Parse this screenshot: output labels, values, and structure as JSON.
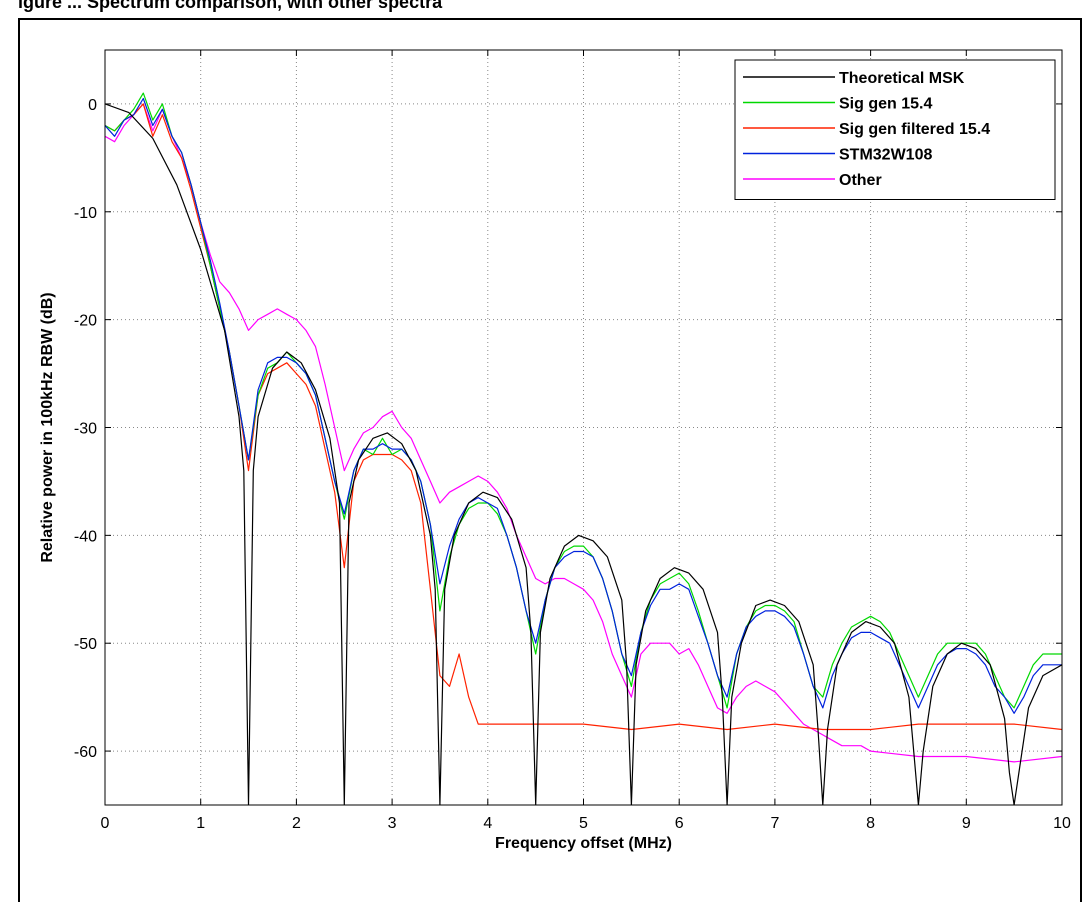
{
  "figure": {
    "title_fragment": "igure ... Spectrum comparison, with other spectra"
  },
  "chart_data": {
    "type": "line",
    "xlabel": "Frequency offset (MHz)",
    "ylabel": "Relative power in 100kHz RBW (dB)",
    "xlim": [
      0,
      10
    ],
    "ylim": [
      -65,
      5
    ],
    "xticks": [
      0,
      1,
      2,
      3,
      4,
      5,
      6,
      7,
      8,
      9,
      10
    ],
    "yticks": [
      0,
      -10,
      -20,
      -30,
      -40,
      -50,
      -60
    ],
    "grid": true,
    "legend_position": "top-right",
    "series": [
      {
        "name": "Theoretical MSK",
        "color": "#000000",
        "x": [
          0,
          0.25,
          0.5,
          0.75,
          1.0,
          1.25,
          1.4,
          1.45,
          1.5,
          1.55,
          1.6,
          1.75,
          1.9,
          2.05,
          2.2,
          2.35,
          2.45,
          2.5,
          2.55,
          2.65,
          2.8,
          2.95,
          3.1,
          3.25,
          3.4,
          3.45,
          3.5,
          3.55,
          3.65,
          3.8,
          3.95,
          4.1,
          4.25,
          4.4,
          4.45,
          4.5,
          4.55,
          4.65,
          4.8,
          4.95,
          5.1,
          5.25,
          5.4,
          5.45,
          5.5,
          5.55,
          5.65,
          5.8,
          5.95,
          6.1,
          6.25,
          6.4,
          6.45,
          6.5,
          6.55,
          6.65,
          6.8,
          6.95,
          7.1,
          7.25,
          7.4,
          7.45,
          7.5,
          7.55,
          7.65,
          7.8,
          7.95,
          8.1,
          8.25,
          8.4,
          8.45,
          8.5,
          8.55,
          8.65,
          8.8,
          8.95,
          9.1,
          9.25,
          9.4,
          9.45,
          9.5,
          9.55,
          9.65,
          9.8,
          10.0
        ],
        "y": [
          0,
          -0.8,
          -3.2,
          -7.5,
          -13.5,
          -21,
          -29,
          -34,
          -65,
          -34,
          -29,
          -24.5,
          -23,
          -24,
          -26.5,
          -31,
          -37,
          -65,
          -37,
          -33,
          -31,
          -30.5,
          -31.5,
          -34,
          -40,
          -45,
          -65,
          -45,
          -40,
          -37,
          -36,
          -36.5,
          -38.5,
          -43,
          -49,
          -65,
          -49,
          -44,
          -41,
          -40,
          -40.5,
          -42,
          -46,
          -52,
          -65,
          -52,
          -47,
          -44,
          -43,
          -43.5,
          -45,
          -49,
          -55,
          -65,
          -55,
          -50,
          -46.5,
          -46,
          -46.5,
          -48,
          -52,
          -58,
          -65,
          -58,
          -52,
          -49,
          -48,
          -48.5,
          -50,
          -55,
          -60,
          -65,
          -60,
          -54,
          -51,
          -50,
          -50.5,
          -52,
          -57,
          -62,
          -65,
          -62,
          -56,
          -53,
          -52
        ]
      },
      {
        "name": "Sig gen 15.4",
        "color": "#00d800",
        "x": [
          0,
          0.1,
          0.2,
          0.3,
          0.4,
          0.5,
          0.6,
          0.7,
          0.8,
          0.9,
          1.0,
          1.1,
          1.2,
          1.3,
          1.4,
          1.5,
          1.6,
          1.7,
          1.8,
          1.9,
          2.0,
          2.1,
          2.2,
          2.3,
          2.4,
          2.5,
          2.6,
          2.7,
          2.8,
          2.9,
          3.0,
          3.1,
          3.2,
          3.3,
          3.4,
          3.5,
          3.6,
          3.7,
          3.8,
          3.9,
          4.0,
          4.1,
          4.2,
          4.3,
          4.4,
          4.5,
          4.6,
          4.7,
          4.8,
          4.9,
          5.0,
          5.1,
          5.2,
          5.3,
          5.4,
          5.5,
          5.6,
          5.7,
          5.8,
          5.9,
          6.0,
          6.1,
          6.2,
          6.3,
          6.4,
          6.5,
          6.6,
          6.7,
          6.8,
          6.9,
          7.0,
          7.1,
          7.2,
          7.3,
          7.4,
          7.5,
          7.6,
          7.7,
          7.8,
          7.9,
          8.0,
          8.1,
          8.2,
          8.3,
          8.4,
          8.5,
          8.6,
          8.7,
          8.8,
          8.9,
          9.0,
          9.1,
          9.2,
          9.3,
          9.4,
          9.5,
          9.6,
          9.7,
          9.8,
          9.9,
          10.0
        ],
        "y": [
          -2,
          -2.5,
          -1.5,
          -0.5,
          1,
          -1.5,
          0,
          -3,
          -4.5,
          -7.5,
          -11,
          -15,
          -19,
          -23,
          -28,
          -33,
          -27,
          -24.5,
          -24,
          -23,
          -24,
          -25,
          -27,
          -31,
          -35,
          -38.5,
          -34,
          -32,
          -32.5,
          -31,
          -32.5,
          -32,
          -33,
          -35,
          -39,
          -47,
          -42,
          -39,
          -37.5,
          -37,
          -37,
          -38,
          -40,
          -43,
          -47,
          -51,
          -46,
          -43,
          -41.5,
          -41,
          -41,
          -42,
          -44,
          -47,
          -51,
          -54,
          -49,
          -46,
          -44.5,
          -44,
          -43.5,
          -44.5,
          -47,
          -50,
          -53,
          -56,
          -51,
          -48.5,
          -47,
          -46.5,
          -46.5,
          -47,
          -48,
          -51,
          -54,
          -55,
          -52,
          -50,
          -48.5,
          -48,
          -47.5,
          -48,
          -49,
          -51,
          -53,
          -55,
          -53,
          -51,
          -50,
          -50,
          -50,
          -50,
          -51,
          -53,
          -55,
          -56,
          -54,
          -52,
          -51,
          -51,
          -51
        ]
      },
      {
        "name": "Sig gen filtered 15.4",
        "color": "#ff2200",
        "x": [
          0,
          0.1,
          0.2,
          0.3,
          0.4,
          0.5,
          0.6,
          0.7,
          0.8,
          0.9,
          1.0,
          1.1,
          1.2,
          1.3,
          1.4,
          1.5,
          1.6,
          1.7,
          1.8,
          1.9,
          2.0,
          2.1,
          2.2,
          2.3,
          2.4,
          2.5,
          2.6,
          2.7,
          2.8,
          2.9,
          3.0,
          3.1,
          3.2,
          3.3,
          3.4,
          3.5,
          3.6,
          3.7,
          3.8,
          3.9,
          4.0,
          4.5,
          5.0,
          5.5,
          6.0,
          6.5,
          7.0,
          7.5,
          8.0,
          8.5,
          9.0,
          9.5,
          10.0
        ],
        "y": [
          -2,
          -2.5,
          -1.5,
          -1,
          0,
          -3,
          -1,
          -3.5,
          -5,
          -8,
          -11.5,
          -15,
          -19,
          -23,
          -28,
          -34,
          -27,
          -25,
          -24.5,
          -24,
          -25,
          -26,
          -28,
          -32,
          -36,
          -43,
          -35,
          -33,
          -32.5,
          -32.5,
          -32.5,
          -33,
          -34,
          -37,
          -45,
          -53,
          -54,
          -51,
          -55,
          -57.5,
          -57.5,
          -57.5,
          -57.5,
          -58,
          -57.5,
          -58,
          -57.5,
          -58,
          -58,
          -57.5,
          -57.5,
          -57.5,
          -58
        ]
      },
      {
        "name": "STM32W108",
        "color": "#0022dd",
        "x": [
          0,
          0.1,
          0.2,
          0.3,
          0.4,
          0.5,
          0.6,
          0.7,
          0.8,
          0.9,
          1.0,
          1.1,
          1.2,
          1.3,
          1.4,
          1.5,
          1.6,
          1.7,
          1.8,
          1.9,
          2.0,
          2.1,
          2.2,
          2.3,
          2.4,
          2.5,
          2.6,
          2.7,
          2.8,
          2.9,
          3.0,
          3.1,
          3.2,
          3.3,
          3.4,
          3.5,
          3.6,
          3.7,
          3.8,
          3.9,
          4.0,
          4.1,
          4.2,
          4.3,
          4.4,
          4.5,
          4.6,
          4.7,
          4.8,
          4.9,
          5.0,
          5.1,
          5.2,
          5.3,
          5.4,
          5.5,
          5.6,
          5.7,
          5.8,
          5.9,
          6.0,
          6.1,
          6.2,
          6.3,
          6.4,
          6.5,
          6.6,
          6.7,
          6.8,
          6.9,
          7.0,
          7.1,
          7.2,
          7.3,
          7.4,
          7.5,
          7.6,
          7.7,
          7.8,
          7.9,
          8.0,
          8.1,
          8.2,
          8.3,
          8.4,
          8.5,
          8.6,
          8.7,
          8.8,
          8.9,
          9.0,
          9.1,
          9.2,
          9.3,
          9.4,
          9.5,
          9.6,
          9.7,
          9.8,
          9.9,
          10.0
        ],
        "y": [
          -2,
          -3,
          -1.5,
          -1,
          0.5,
          -2,
          -0.5,
          -3,
          -4.5,
          -7.5,
          -11,
          -14.5,
          -18.5,
          -23,
          -28,
          -33,
          -26.5,
          -24,
          -23.5,
          -23.5,
          -24,
          -25,
          -27,
          -31,
          -35,
          -38,
          -34,
          -32,
          -32,
          -31.5,
          -32,
          -32,
          -33,
          -35,
          -39,
          -44.5,
          -41,
          -38.5,
          -37,
          -36.5,
          -37,
          -37.5,
          -40,
          -43,
          -47,
          -50,
          -46,
          -43,
          -42,
          -41.5,
          -41.5,
          -42,
          -44,
          -47,
          -51,
          -53,
          -49,
          -46.5,
          -45,
          -45,
          -44.5,
          -45,
          -47.5,
          -50,
          -53,
          -55,
          -51,
          -48.5,
          -47.5,
          -47,
          -47,
          -47.5,
          -48.5,
          -51,
          -54,
          -56,
          -53,
          -51,
          -49.5,
          -49,
          -49,
          -49.5,
          -50,
          -52,
          -54,
          -56,
          -54,
          -52,
          -51,
          -50.5,
          -50.5,
          -51,
          -52,
          -54,
          -55,
          -56.5,
          -55,
          -53,
          -52,
          -52,
          -52
        ]
      },
      {
        "name": "Other",
        "color": "#ff00ff",
        "x": [
          0,
          0.1,
          0.2,
          0.3,
          0.4,
          0.5,
          0.6,
          0.7,
          0.8,
          0.9,
          1.0,
          1.1,
          1.2,
          1.3,
          1.4,
          1.5,
          1.6,
          1.7,
          1.8,
          1.9,
          2.0,
          2.1,
          2.2,
          2.3,
          2.4,
          2.5,
          2.6,
          2.7,
          2.8,
          2.9,
          3.0,
          3.1,
          3.2,
          3.3,
          3.4,
          3.5,
          3.6,
          3.7,
          3.8,
          3.9,
          4.0,
          4.1,
          4.2,
          4.3,
          4.4,
          4.5,
          4.6,
          4.7,
          4.8,
          4.9,
          5.0,
          5.1,
          5.2,
          5.3,
          5.4,
          5.5,
          5.6,
          5.7,
          5.8,
          5.9,
          6.0,
          6.1,
          6.2,
          6.3,
          6.4,
          6.5,
          6.6,
          6.7,
          6.8,
          6.9,
          7.0,
          7.1,
          7.2,
          7.3,
          7.4,
          7.5,
          7.6,
          7.7,
          7.8,
          7.9,
          8.0,
          8.5,
          9.0,
          9.5,
          10.0
        ],
        "y": [
          -3,
          -3.5,
          -2,
          -1,
          0,
          -2.5,
          -0.5,
          -3,
          -5,
          -7.5,
          -11,
          -14,
          -16.5,
          -17.5,
          -19,
          -21,
          -20,
          -19.5,
          -19,
          -19.5,
          -20,
          -21,
          -22.5,
          -26,
          -30,
          -34,
          -32,
          -30.5,
          -30,
          -29,
          -28.5,
          -30,
          -31,
          -33,
          -35,
          -37,
          -36,
          -35.5,
          -35,
          -34.5,
          -35,
          -36,
          -37.5,
          -40,
          -42,
          -44,
          -44.5,
          -44,
          -44,
          -44.5,
          -45,
          -46,
          -48,
          -51,
          -53,
          -55,
          -51,
          -50,
          -50,
          -50,
          -51,
          -50.5,
          -52,
          -54,
          -56,
          -56.5,
          -55,
          -54,
          -53.5,
          -54,
          -54.5,
          -55.5,
          -56.5,
          -57.5,
          -58,
          -58.5,
          -59,
          -59.5,
          -59.5,
          -59.5,
          -60,
          -60.5,
          -60.5,
          -61,
          -60.5
        ]
      }
    ]
  }
}
